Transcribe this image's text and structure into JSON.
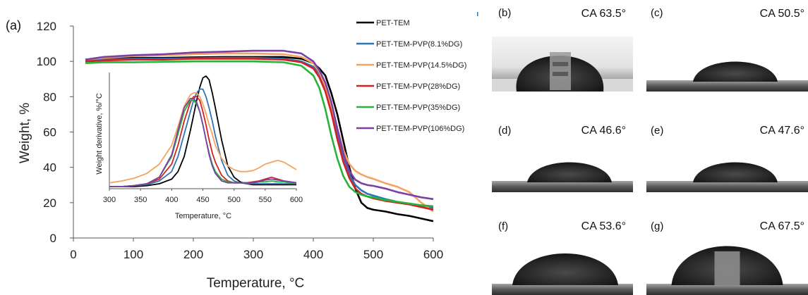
{
  "panel_a_label": "(a)",
  "chart_data": [
    {
      "type": "line",
      "xlabel": "Temperature, °C",
      "ylabel": "Weight, %",
      "xlim": [
        0,
        600
      ],
      "ylim": [
        0,
        120
      ],
      "x_ticks": [
        "0",
        "100",
        "200",
        "300",
        "400",
        "500",
        "600"
      ],
      "y_ticks": [
        "0",
        "20",
        "40",
        "60",
        "80",
        "100",
        "120"
      ],
      "grid": false,
      "legend_position": "top-right",
      "x": [
        20,
        50,
        100,
        150,
        200,
        250,
        300,
        350,
        380,
        400,
        410,
        420,
        430,
        440,
        450,
        460,
        470,
        480,
        490,
        500,
        520,
        540,
        560,
        580,
        600
      ],
      "series": [
        {
          "name": "PET-TEM",
          "color": "#000000",
          "values": [
            101,
            101.5,
            102,
            102,
            102.3,
            102.5,
            102.5,
            102.5,
            101.5,
            99,
            96,
            92,
            82,
            70,
            55,
            40,
            28,
            20,
            17,
            16,
            15,
            13.5,
            12.5,
            11,
            9.5
          ]
        },
        {
          "name": "PET-TEM-PVP(8.1%DG)",
          "color": "#2e75b6",
          "values": [
            101,
            101,
            101.5,
            101.5,
            101.8,
            102,
            102,
            101.5,
            100,
            97,
            93,
            85,
            72,
            58,
            45,
            36,
            30,
            27,
            25,
            24,
            22,
            20.5,
            19.5,
            18.5,
            17
          ]
        },
        {
          "name": "PET-TEM-PVP(14.5%DG)",
          "color": "#f4a460",
          "values": [
            101,
            102,
            103,
            103.5,
            104,
            104.5,
            104.5,
            104,
            102.5,
            99,
            94,
            86,
            75,
            62,
            50,
            42,
            38,
            36,
            34.5,
            33.5,
            31,
            29,
            26,
            20,
            15
          ]
        },
        {
          "name": "PET-TEM-PVP(28%DG)",
          "color": "#d42020",
          "values": [
            100,
            100.5,
            101,
            101,
            101.5,
            101.5,
            101.5,
            101,
            99.5,
            96,
            91,
            83,
            71,
            56,
            43,
            34,
            28,
            25,
            23.5,
            22.5,
            21,
            20,
            19,
            17.5,
            16
          ]
        },
        {
          "name": "PET-TEM-PVP(35%DG)",
          "color": "#27b43a",
          "values": [
            99,
            99.5,
            99.5,
            99.8,
            100,
            100,
            100,
            99.5,
            97.5,
            92,
            85,
            73,
            58,
            45,
            35,
            29,
            26,
            24.5,
            23.5,
            23,
            21.5,
            20.5,
            19.5,
            18.5,
            18
          ]
        },
        {
          "name": "PET-TEM-PVP(106%DG)",
          "color": "#7b3fa6",
          "values": [
            101,
            102.5,
            103.5,
            104,
            105,
            105.5,
            106,
            106,
            104.5,
            100,
            95,
            88,
            77,
            62,
            48,
            38,
            33,
            31,
            30,
            29.5,
            28,
            26,
            24.5,
            23,
            22
          ]
        }
      ]
    },
    {
      "type": "line",
      "xlabel": "Temperature, °C",
      "ylabel": "Weight derivative, %/°C",
      "xlim": [
        300,
        600
      ],
      "x_ticks": [
        "300",
        "350",
        "400",
        "450",
        "500",
        "550",
        "600"
      ],
      "y_ticks": [],
      "grid": false,
      "x": [
        300,
        320,
        340,
        360,
        380,
        400,
        410,
        420,
        430,
        435,
        440,
        445,
        450,
        455,
        460,
        465,
        470,
        480,
        490,
        500,
        510,
        520,
        530,
        540,
        550,
        560,
        570,
        580,
        590,
        600
      ],
      "series": [
        {
          "name": "PET-TEM",
          "color": "#000000",
          "values": [
            0,
            0,
            0,
            0.5,
            1.5,
            4,
            8,
            16,
            30,
            38,
            46,
            53,
            58,
            59,
            57,
            50,
            42,
            25,
            11,
            5,
            2.5,
            1.5,
            1,
            1,
            1,
            1,
            1,
            1,
            1,
            1
          ]
        },
        {
          "name": "PET-TEM-PVP(8.1%DG)",
          "color": "#2e75b6",
          "values": [
            0,
            0,
            0.5,
            1,
            3,
            8,
            16,
            28,
            40,
            46,
            50,
            52,
            52,
            48,
            42,
            35,
            27,
            14,
            6,
            3,
            2,
            1.5,
            1.5,
            1.5,
            1.5,
            1.5,
            1.5,
            1.5,
            1.5,
            1.5
          ]
        },
        {
          "name": "PET-TEM-PVP(14.5%DG)",
          "color": "#f4a460",
          "values": [
            2,
            3,
            4.5,
            7,
            12,
            22,
            32,
            43,
            49,
            50,
            50,
            48,
            44,
            39,
            33,
            28,
            22,
            15,
            11,
            9,
            8,
            8,
            8.5,
            10,
            12,
            13,
            14,
            13,
            11,
            9
          ]
        },
        {
          "name": "PET-TEM-PVP(28%DG)",
          "color": "#d42020",
          "values": [
            0,
            0,
            0.5,
            1.5,
            4,
            12,
            22,
            35,
            45,
            48,
            48,
            46,
            40,
            33,
            25,
            18,
            13,
            6,
            3,
            2,
            2,
            2,
            2.5,
            3,
            4,
            5,
            4,
            3,
            2.5,
            2
          ]
        },
        {
          "name": "PET-TEM-PVP(35%DG)",
          "color": "#27b43a",
          "values": [
            0,
            0,
            0.5,
            1.5,
            5,
            16,
            28,
            40,
            46,
            46,
            44,
            40,
            33,
            25,
            18,
            12,
            8,
            4,
            2.5,
            2,
            2,
            2,
            2,
            2.5,
            2.5,
            3,
            2.5,
            2.5,
            2,
            2
          ]
        },
        {
          "name": "PET-TEM-PVP(106%DG)",
          "color": "#7b3fa6",
          "values": [
            0,
            0,
            0.5,
            1.5,
            5,
            17,
            30,
            42,
            47,
            47,
            45,
            40,
            33,
            25,
            17,
            11,
            7,
            3,
            2,
            2,
            2,
            2,
            2,
            2.5,
            3.5,
            4,
            3.5,
            3,
            2.5,
            2
          ]
        }
      ]
    }
  ],
  "contact_angle_panels": [
    {
      "label": "(b)",
      "ca_text": "CA 63.5°"
    },
    {
      "label": "(c)",
      "ca_text": "CA 50.5°"
    },
    {
      "label": "(d)",
      "ca_text": "CA 46.6°"
    },
    {
      "label": "(e)",
      "ca_text": "CA 47.6°"
    },
    {
      "label": "(f)",
      "ca_text": "CA 53.6°"
    },
    {
      "label": "(g)",
      "ca_text": "CA 67.5°"
    }
  ]
}
